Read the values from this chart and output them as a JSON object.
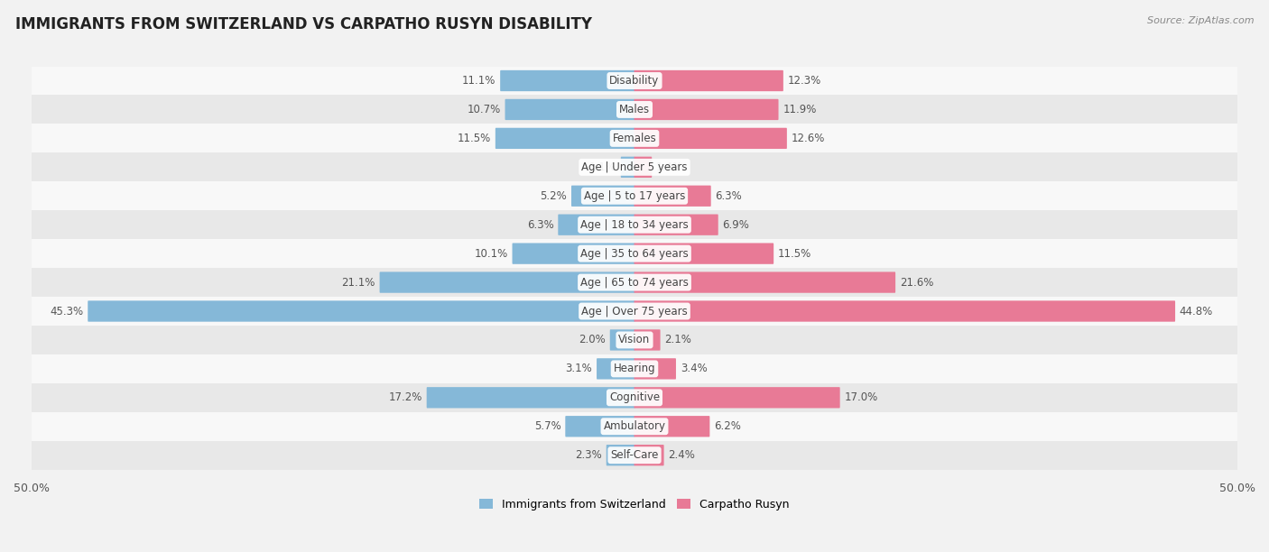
{
  "title": "IMMIGRANTS FROM SWITZERLAND VS CARPATHO RUSYN DISABILITY",
  "source": "Source: ZipAtlas.com",
  "categories": [
    "Disability",
    "Males",
    "Females",
    "Age | Under 5 years",
    "Age | 5 to 17 years",
    "Age | 18 to 34 years",
    "Age | 35 to 64 years",
    "Age | 65 to 74 years",
    "Age | Over 75 years",
    "Vision",
    "Hearing",
    "Cognitive",
    "Ambulatory",
    "Self-Care"
  ],
  "left_values": [
    11.1,
    10.7,
    11.5,
    1.1,
    5.2,
    6.3,
    10.1,
    21.1,
    45.3,
    2.0,
    3.1,
    17.2,
    5.7,
    2.3
  ],
  "right_values": [
    12.3,
    11.9,
    12.6,
    1.4,
    6.3,
    6.9,
    11.5,
    21.6,
    44.8,
    2.1,
    3.4,
    17.0,
    6.2,
    2.4
  ],
  "left_color": "#85b8d8",
  "right_color": "#e87a96",
  "axis_max": 50.0,
  "bg_color": "#f2f2f2",
  "row_bg_light": "#f8f8f8",
  "row_bg_dark": "#e8e8e8",
  "legend_left_label": "Immigrants from Switzerland",
  "legend_right_label": "Carpatho Rusyn",
  "title_fontsize": 12,
  "value_fontsize": 8.5,
  "category_fontsize": 8.5
}
